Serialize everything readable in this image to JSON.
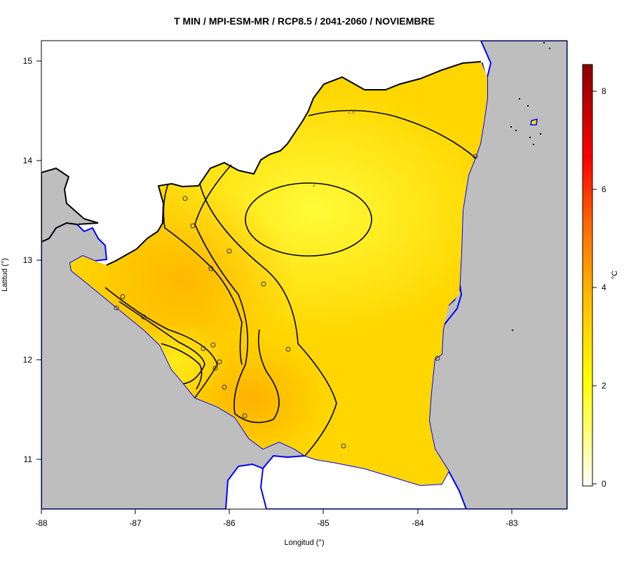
{
  "title": "T MIN / MPI-ESM-MR / RCP8.5 / 2041-2060 / NOVIEMBRE",
  "x_axis": {
    "label": "Longitud (°)",
    "ticks": [
      "-88",
      "-87",
      "-86",
      "-85",
      "-84",
      "-83"
    ]
  },
  "y_axis": {
    "label": "Latitud (°)",
    "ticks": [
      "15",
      "14",
      "13",
      "12",
      "11"
    ]
  },
  "colorbar": {
    "unit": "°C",
    "ticks": [
      "0",
      "2",
      "4",
      "6",
      "8"
    ]
  },
  "contours": {
    "label_2_5": "2.5",
    "label_2": "2"
  },
  "colors": {
    "land_gray": "#bebebe",
    "coast_line": "#0000ff",
    "field_yellow": "#ffe100",
    "field_orange": "#ffb300"
  }
}
